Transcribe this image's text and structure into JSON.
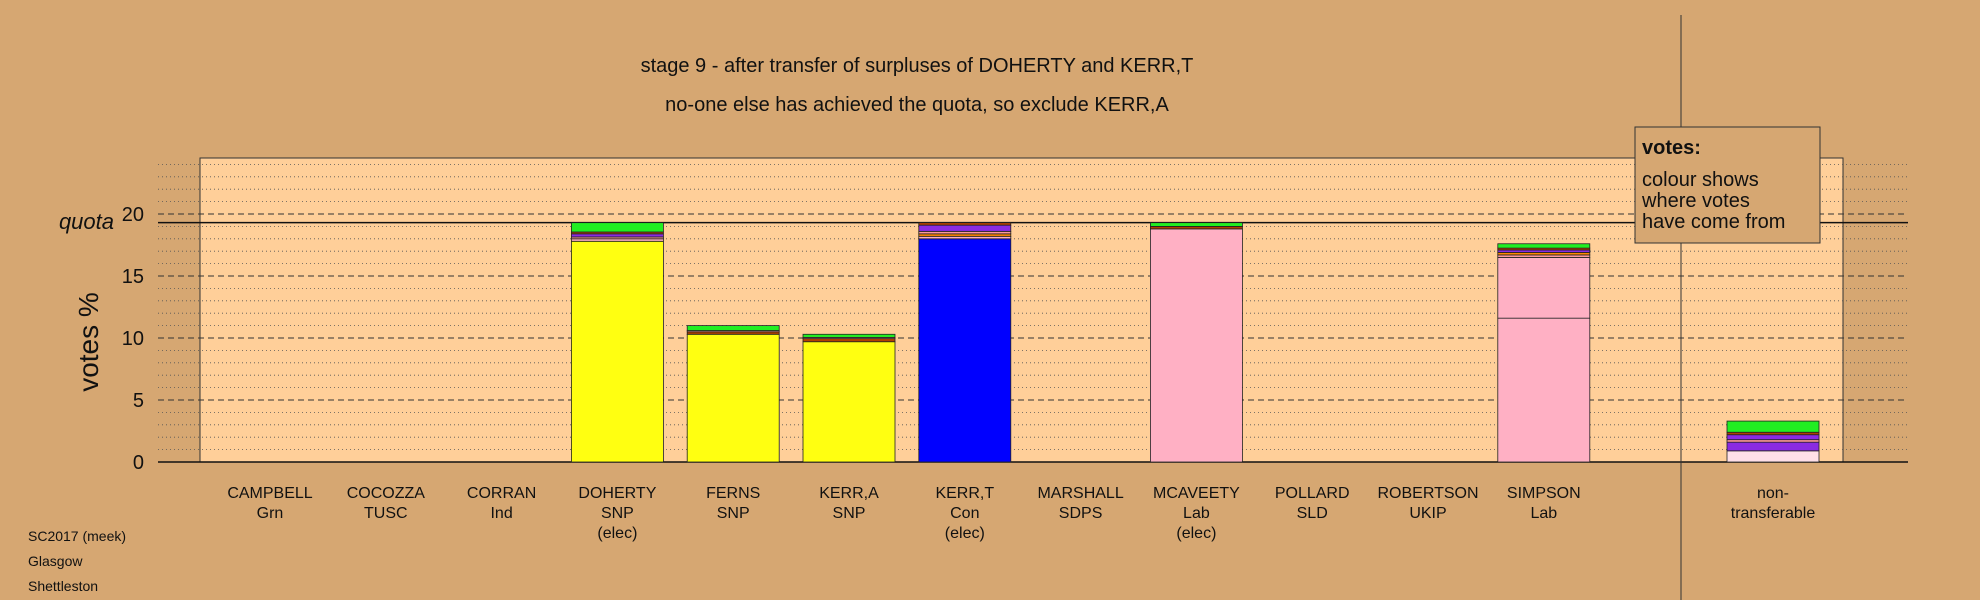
{
  "chart_data": {
    "type": "bar",
    "title": "stage 9 - after transfer of surpluses of DOHERTY and KERR,T",
    "subtitle": "no-one else has achieved the quota, so exclude KERR,A",
    "ylabel": "votes %",
    "ylim": [
      0,
      25
    ],
    "yticks": [
      0,
      5,
      10,
      15,
      20
    ],
    "quota": 19.3,
    "quota_label": "quota",
    "grid": true,
    "legend": {
      "title": "votes:",
      "lines": [
        "colour shows",
        "where votes",
        "have come from"
      ],
      "position": "top-right"
    },
    "colors": {
      "background": "#d6a772",
      "plot": "#ffcf99",
      "Grn": "#22ee22",
      "SNP": "#ffff11",
      "Con": "#0000ff",
      "Lab": "#ffb0c4",
      "TUSC": "#8800cc",
      "Ind": "#ff9999",
      "SDPS": "#b04000",
      "SLD": "#ff8800",
      "UKIP": "#8a2be2",
      "nontransferable": "#ffe0e8"
    },
    "candidates": [
      {
        "name": "CAMPBELL",
        "party": "Grn",
        "status": "",
        "total": 0,
        "segments": []
      },
      {
        "name": "COCOZZA",
        "party": "TUSC",
        "status": "",
        "total": 0,
        "segments": []
      },
      {
        "name": "CORRAN",
        "party": "Ind",
        "status": "",
        "total": 0,
        "segments": []
      },
      {
        "name": "DOHERTY",
        "party": "SNP",
        "status": "(elec)",
        "total": 19.3,
        "segments": [
          {
            "source": "SNP",
            "value": 17.8
          },
          {
            "source": "Lab",
            "value": 0.2
          },
          {
            "source": "Ind",
            "value": 0.15
          },
          {
            "source": "UKIP",
            "value": 0.25
          },
          {
            "source": "SDPS",
            "value": 0.15
          },
          {
            "source": "Grn",
            "value": 0.75
          }
        ]
      },
      {
        "name": "FERNS",
        "party": "SNP",
        "status": "",
        "total": 11.0,
        "segments": [
          {
            "source": "SNP",
            "value": 10.3
          },
          {
            "source": "SDPS",
            "value": 0.2
          },
          {
            "source": "Ind",
            "value": 0.1
          },
          {
            "source": "Grn",
            "value": 0.4
          }
        ]
      },
      {
        "name": "KERR,A",
        "party": "SNP",
        "status": "",
        "total": 10.3,
        "segments": [
          {
            "source": "SNP",
            "value": 9.7
          },
          {
            "source": "SDPS",
            "value": 0.25
          },
          {
            "source": "Ind",
            "value": 0.1
          },
          {
            "source": "Grn",
            "value": 0.25
          }
        ]
      },
      {
        "name": "KERR,T",
        "party": "Con",
        "status": "(elec)",
        "total": 19.3,
        "segments": [
          {
            "source": "Con",
            "value": 18.0
          },
          {
            "source": "Lab",
            "value": 0.2
          },
          {
            "source": "SLD",
            "value": 0.2
          },
          {
            "source": "Ind",
            "value": 0.2
          },
          {
            "source": "UKIP",
            "value": 0.5
          },
          {
            "source": "SDPS",
            "value": 0.2
          }
        ]
      },
      {
        "name": "MARSHALL",
        "party": "SDPS",
        "status": "",
        "total": 0,
        "segments": []
      },
      {
        "name": "MCAVEETY",
        "party": "Lab",
        "status": "(elec)",
        "total": 19.3,
        "segments": [
          {
            "source": "Lab",
            "value": 18.8
          },
          {
            "source": "SDPS",
            "value": 0.2
          },
          {
            "source": "Grn",
            "value": 0.3
          }
        ]
      },
      {
        "name": "POLLARD",
        "party": "SLD",
        "status": "",
        "total": 0,
        "segments": []
      },
      {
        "name": "ROBERTSON",
        "party": "UKIP",
        "status": "",
        "total": 0,
        "segments": []
      },
      {
        "name": "SIMPSON",
        "party": "Lab",
        "status": "",
        "total": 17.6,
        "segments": [
          {
            "source": "Lab",
            "value": 11.6
          },
          {
            "source": "Lab",
            "value": 4.9
          },
          {
            "source": "Ind",
            "value": 0.2
          },
          {
            "source": "SLD",
            "value": 0.2
          },
          {
            "source": "UKIP",
            "value": 0.2
          },
          {
            "source": "SDPS",
            "value": 0.15
          },
          {
            "source": "Grn",
            "value": 0.35
          }
        ]
      }
    ],
    "nontransferable": {
      "label_lines": [
        "non-",
        "transferable"
      ],
      "total": 3.3,
      "segments": [
        {
          "source": "nontransferable",
          "value": 0.9
        },
        {
          "source": "UKIP",
          "value": 0.7
        },
        {
          "source": "Ind",
          "value": 0.2
        },
        {
          "source": "UKIP",
          "value": 0.4
        },
        {
          "source": "SDPS",
          "value": 0.2
        },
        {
          "source": "Grn",
          "value": 0.9
        }
      ]
    }
  },
  "footer": [
    "SC2017 (meek)",
    "Glasgow",
    "Shettleston"
  ]
}
